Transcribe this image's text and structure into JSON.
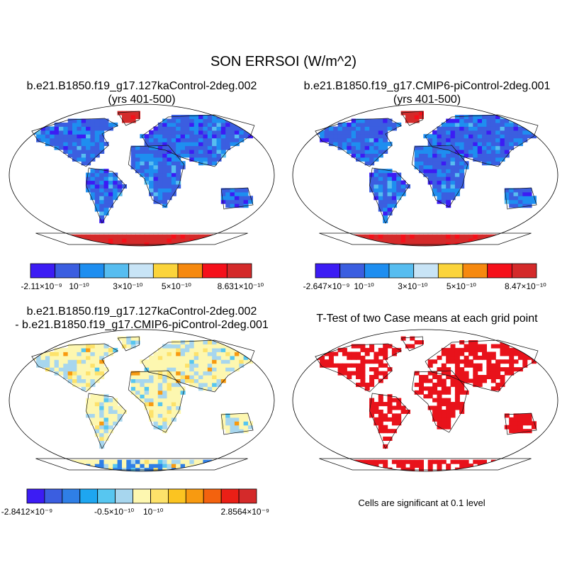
{
  "figure_title": "SON ERRSOI (W/m^2)",
  "chart_data": [
    {
      "type": "heatmap",
      "title_line1": "b.e21.B1850.f19_g17.127kaControl-2deg.002",
      "title_line2": "(yrs 401-500)",
      "projection": "Robinson world map",
      "colorbar": {
        "colors": [
          "#3c1cf4",
          "#3b5ee0",
          "#1e8ef0",
          "#57bdf0",
          "#c8e4f6",
          "#fbd43b",
          "#f6890f",
          "#f5101a",
          "#d42a2a"
        ],
        "tick_labels": [
          "-2.11×10⁻⁹",
          "10⁻¹⁰",
          "3×10⁻¹⁰",
          "5×10⁻¹⁰",
          "8.631×10⁻¹⁰"
        ],
        "min": -2.11e-09,
        "max": 8.631e-10
      }
    },
    {
      "type": "heatmap",
      "title_line1": "b.e21.B1850.f19_g17.CMIP6-piControl-2deg.001",
      "title_line2": "(yrs 401-500)",
      "projection": "Robinson world map",
      "colorbar": {
        "colors": [
          "#3c1cf4",
          "#3b5ee0",
          "#1e8ef0",
          "#57bdf0",
          "#c8e4f6",
          "#fbd43b",
          "#f6890f",
          "#f5101a",
          "#d42a2a"
        ],
        "tick_labels": [
          "-2.647×10⁻⁹",
          "10⁻¹⁰",
          "3×10⁻¹⁰",
          "5×10⁻¹⁰",
          "8.47×10⁻¹⁰"
        ],
        "min": -2.647e-09,
        "max": 8.47e-10
      }
    },
    {
      "type": "heatmap",
      "title_line1": "b.e21.B1850.f19_g17.127kaControl-2deg.002",
      "title_line2": "- b.e21.B1850.f19_g17.CMIP6-piControl-2deg.001",
      "projection": "Robinson world map",
      "colorbar": {
        "colors": [
          "#3c1cf4",
          "#3b5ee0",
          "#2f7fe6",
          "#1ea6f0",
          "#57c6f0",
          "#a7d6ee",
          "#fdf7b0",
          "#fde26a",
          "#fbc421",
          "#f89a10",
          "#f3620e",
          "#ea1f16",
          "#d42a2a"
        ],
        "tick_labels": [
          "-2.8412×10⁻⁹",
          "-0.5×10⁻¹⁰",
          "10⁻¹⁰",
          "2.8564×10⁻⁹"
        ],
        "min": -2.8412e-09,
        "max": 2.8564e-09
      }
    },
    {
      "type": "heatmap",
      "title_line1": "T-Test of two Case means at each grid point",
      "projection": "Robinson world map",
      "note": "Cells are significant at 0.1 level"
    }
  ]
}
